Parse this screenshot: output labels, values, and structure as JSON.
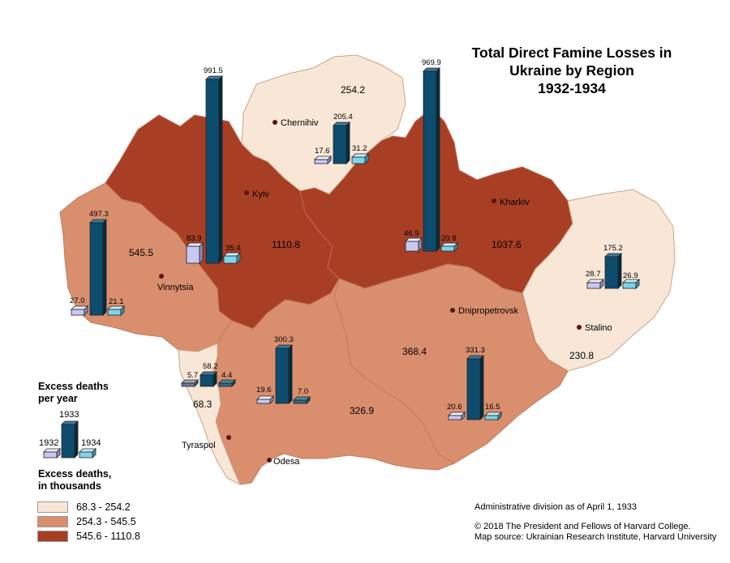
{
  "title": [
    "Total Direct Famine Losses in",
    "Ukraine by Region",
    "1932-1934"
  ],
  "legend": {
    "bars_heading": [
      "Excess deaths",
      "per year"
    ],
    "years": {
      "y1932": "1932",
      "y1933": "1933",
      "y1934": "1934"
    },
    "classes_heading": [
      "Excess deaths,",
      "in thousands"
    ],
    "classes": [
      {
        "label": "68.3 - 254.2",
        "color": "#f8e7d6"
      },
      {
        "label": "254.3 - 545.5",
        "color": "#d98e6e"
      },
      {
        "label": "545.6 - 1110.8",
        "color": "#a83f25"
      }
    ]
  },
  "colors": {
    "bar_1932": "#c8c8f0",
    "bar_1933": "#0e4c6e",
    "bar_1934": "#7fd3ec",
    "city_dot": "#5a1410",
    "boundary": "#b86a50"
  },
  "regions": [
    {
      "name": "Kyiv",
      "total": "1110.8",
      "y1932": "83.9",
      "y1933": "991.5",
      "y1934": "35.4"
    },
    {
      "name": "Kharkiv",
      "total": "1037.6",
      "y1932": "46.9",
      "y1933": "969.9",
      "y1934": "20.8"
    },
    {
      "name": "Vinnytsia",
      "total": "545.5",
      "y1932": "27.0",
      "y1933": "497.3",
      "y1934": "21.1"
    },
    {
      "name": "Chernihiv",
      "total": "254.2",
      "y1932": "17.6",
      "y1933": "205.4",
      "y1934": "31.2"
    },
    {
      "name": "Stalino",
      "total": "230.8",
      "y1932": "28.7",
      "y1933": "175.2",
      "y1934": "26.9"
    },
    {
      "name": "Dnipropetrovsk",
      "total": "368.4",
      "y1932": "20.6",
      "y1933": "331.3",
      "y1934": "16.5"
    },
    {
      "name": "Odesa",
      "total": "326.9",
      "y1932": "19.6",
      "y1933": "300.3",
      "y1934": "7.0"
    },
    {
      "name": "Tyraspol",
      "total": "68.3",
      "y1932": "5.7",
      "y1933": "58.2",
      "y1934": "4.4"
    }
  ],
  "credits": {
    "admin": "Administrative division as of April 1, 1933",
    "copyright": "© 2018 The President and Fellows of Harvard College.",
    "source": "Map source: Ukrainian Research Institute, Harvard University"
  }
}
